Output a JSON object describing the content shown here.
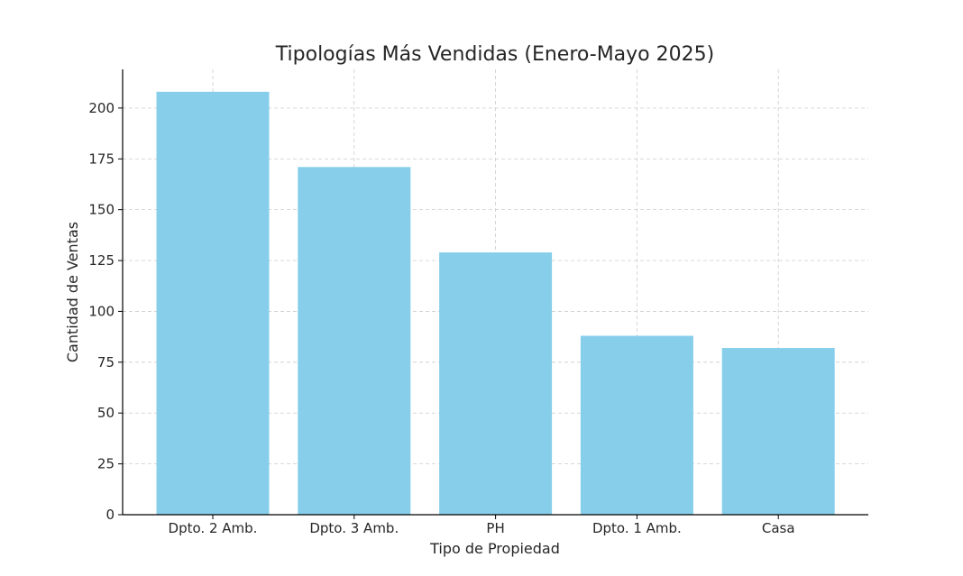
{
  "chart_data": {
    "type": "bar",
    "title": "Tipologías Más Vendidas (Enero-Mayo 2025)",
    "xlabel": "Tipo de Propiedad",
    "ylabel": "Cantidad de Ventas",
    "categories": [
      "Dpto. 2 Amb.",
      "Dpto. 3 Amb.",
      "PH",
      "Dpto. 1 Amb.",
      "Casa"
    ],
    "values": [
      208,
      171,
      129,
      88,
      82
    ],
    "ylim": [
      0,
      219
    ],
    "yticks": [
      0,
      25,
      50,
      75,
      100,
      125,
      150,
      175,
      200
    ],
    "grid": true,
    "bar_color": "#87CEEB"
  }
}
